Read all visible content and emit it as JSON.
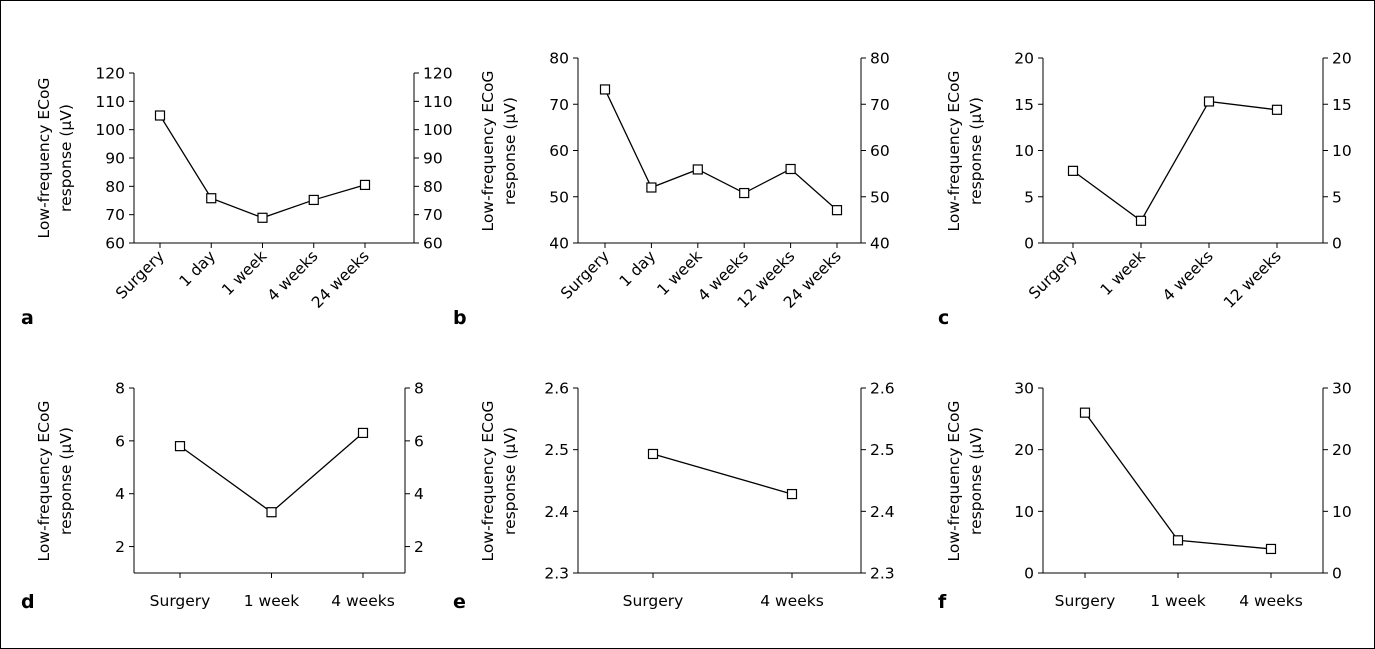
{
  "figure": {
    "border_color": "#000000",
    "line_color": "#000000",
    "marker_fill": "#ffffff"
  },
  "chart_data": [
    {
      "panel": "a",
      "type": "line",
      "ylabel": [
        "Low-frequency ECoG",
        "response (µV)"
      ],
      "categories": [
        "Surgery",
        "1 day",
        "1 week",
        "4 weeks",
        "24 weeks"
      ],
      "values": [
        105,
        75.8,
        68.9,
        75.2,
        80.5
      ],
      "ylim": [
        60,
        120
      ],
      "yticks": [
        60,
        70,
        80,
        90,
        100,
        110,
        120
      ],
      "rotated_labels": true,
      "marker": "open-square",
      "right_axis": true
    },
    {
      "panel": "b",
      "type": "line",
      "ylabel": [
        "Low-frequency ECoG",
        "response (µV)"
      ],
      "categories": [
        "Surgery",
        "1 day",
        "1 week",
        "4 weeks",
        "12 weeks",
        "24 weeks"
      ],
      "values": [
        73.2,
        52,
        55.9,
        50.8,
        56,
        47.1
      ],
      "ylim": [
        40,
        80
      ],
      "yticks": [
        40,
        50,
        60,
        70,
        80
      ],
      "rotated_labels": true,
      "marker": "open-square",
      "right_axis": true
    },
    {
      "panel": "c",
      "type": "line",
      "ylabel": [
        "Low-frequency ECoG",
        "response (µV)"
      ],
      "categories": [
        "Surgery",
        "1 week",
        "4 weeks",
        "12 weeks"
      ],
      "values": [
        7.8,
        2.4,
        15.3,
        14.4
      ],
      "ylim": [
        0,
        20
      ],
      "yticks": [
        0,
        5,
        10,
        15,
        20
      ],
      "rotated_labels": true,
      "marker": "open-square",
      "right_axis": true
    },
    {
      "panel": "d",
      "type": "line",
      "ylabel": [
        "Low-frequency ECoG",
        "response (µV)"
      ],
      "categories": [
        "Surgery",
        "1 week",
        "4 weeks"
      ],
      "values": [
        5.8,
        3.3,
        6.3
      ],
      "ylim": [
        1,
        8
      ],
      "yticks": [
        2,
        4,
        6,
        8
      ],
      "rotated_labels": false,
      "marker": "open-square",
      "right_axis": true
    },
    {
      "panel": "e",
      "type": "line",
      "ylabel": [
        "Low-frequency ECoG",
        "response (µV)"
      ],
      "categories": [
        "Surgery",
        "4 weeks"
      ],
      "values": [
        2.493,
        2.428
      ],
      "ylim": [
        2.3,
        2.6
      ],
      "yticks": [
        2.3,
        2.4,
        2.5,
        2.6
      ],
      "rotated_labels": false,
      "marker": "open-square",
      "right_axis": true
    },
    {
      "panel": "f",
      "type": "line",
      "ylabel": [
        "Low-frequency ECoG",
        "response (µV)"
      ],
      "categories": [
        "Surgery",
        "1 week",
        "4 weeks"
      ],
      "values": [
        26,
        5.3,
        3.9
      ],
      "ylim": [
        0,
        30
      ],
      "yticks": [
        0,
        10,
        20,
        30
      ],
      "rotated_labels": false,
      "marker": "open-square",
      "right_axis": true
    }
  ]
}
